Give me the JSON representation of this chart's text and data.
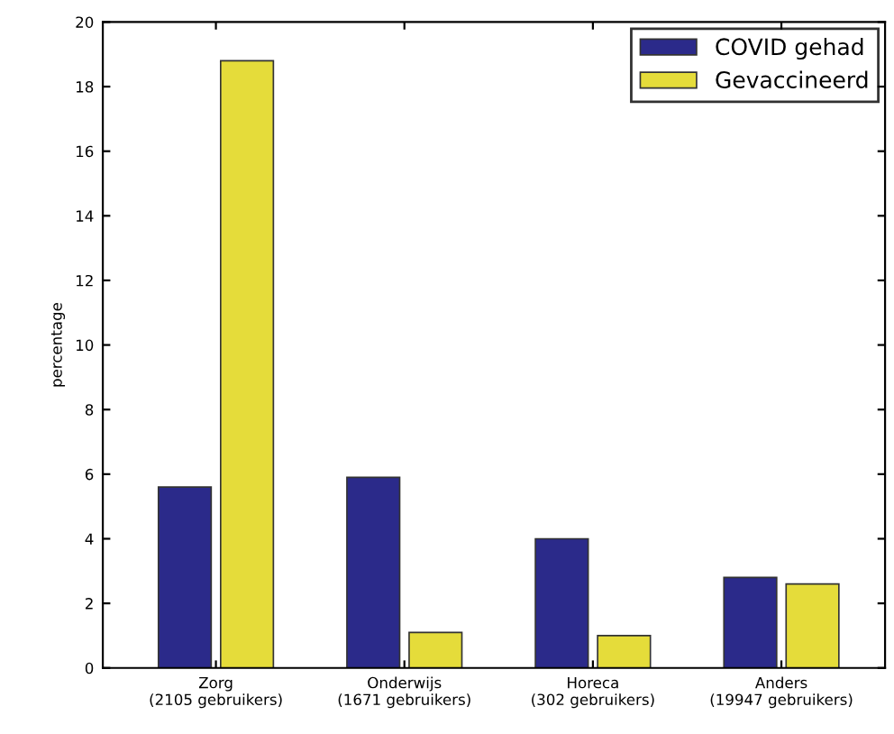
{
  "chart_data": {
    "type": "bar",
    "ylabel": "percentage",
    "categories": [
      "Zorg\n(2105 gebruikers)",
      "Onderwijs\n(1671 gebruikers)",
      "Horeca\n(302 gebruikers)",
      "Anders\n(19947 gebruikers)"
    ],
    "series": [
      {
        "name": "COVID gehad",
        "color": "#2b2a8a",
        "values": [
          5.6,
          5.9,
          4.0,
          2.8
        ]
      },
      {
        "name": "Gevaccineerd",
        "color": "#e5dc3a",
        "values": [
          18.8,
          1.1,
          1.0,
          2.6
        ]
      }
    ],
    "ylim": [
      0,
      20
    ],
    "yticks": [
      0,
      2,
      4,
      6,
      8,
      10,
      12,
      14,
      16,
      18,
      20
    ],
    "grid": false,
    "legend": "top right"
  }
}
